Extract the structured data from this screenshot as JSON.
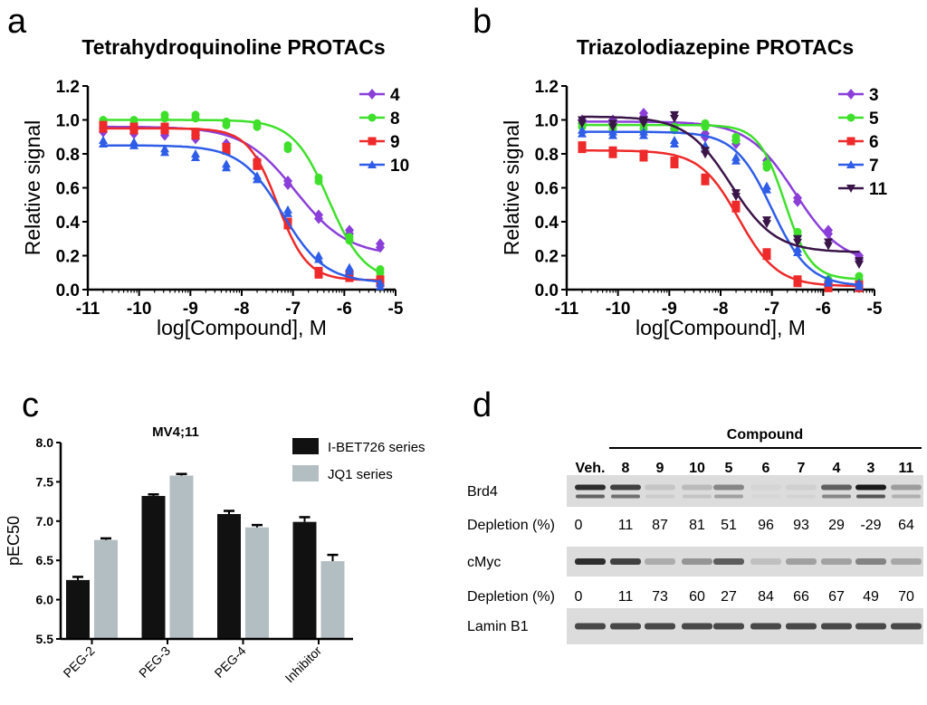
{
  "panel_letters": [
    "a",
    "b",
    "c",
    "d"
  ],
  "chart_data": [
    {
      "type": "line",
      "title": "Tetrahydroquinoline PROTACs",
      "xlabel": "log[Compound], M",
      "ylabel": "Relative signal",
      "xlim": [
        -11,
        -5
      ],
      "ylim": [
        0,
        1.2
      ],
      "xticks": [
        "-11",
        "-10",
        "-9",
        "-8",
        "-7",
        "-6",
        "-5"
      ],
      "yticks": [
        "0.0",
        "0.2",
        "0.4",
        "0.6",
        "0.8",
        "1.0",
        "1.2"
      ],
      "legend": "top-right",
      "x": [
        -10.7,
        -10.1,
        -9.5,
        -8.9,
        -8.3,
        -7.7,
        -7.1,
        -6.5,
        -5.9,
        -5.3
      ],
      "series": [
        {
          "name": "4",
          "color": "#8B3FD9",
          "marker": "diamond",
          "values": [
            0.95,
            0.94,
            0.93,
            0.91,
            0.86,
            0.76,
            0.64,
            0.44,
            0.35,
            0.27
          ],
          "fit": {
            "top": 0.96,
            "bottom": 0.2,
            "logec50": -6.95,
            "hill": 0.85
          }
        },
        {
          "name": "8",
          "color": "#3EE02B",
          "marker": "circle",
          "values": [
            1.0,
            1.0,
            1.03,
            1.03,
            0.99,
            0.98,
            0.85,
            0.66,
            0.31,
            0.12
          ],
          "fit": {
            "top": 1.0,
            "bottom": 0.05,
            "logec50": -6.3,
            "hill": 1.25
          }
        },
        {
          "name": "9",
          "color": "#EE2A2A",
          "marker": "square",
          "values": [
            0.97,
            0.96,
            0.96,
            0.93,
            0.84,
            0.75,
            0.4,
            0.11,
            0.09,
            0.06
          ],
          "fit": {
            "top": 0.95,
            "bottom": 0.055,
            "logec50": -7.3,
            "hill": 1.5
          }
        },
        {
          "name": "10",
          "color": "#2F5DE8",
          "marker": "triangle",
          "values": [
            0.88,
            0.87,
            0.83,
            0.8,
            0.74,
            0.67,
            0.47,
            0.2,
            0.13,
            0.04
          ],
          "fit": {
            "top": 0.85,
            "bottom": 0.04,
            "logec50": -7.2,
            "hill": 1.05
          }
        }
      ]
    },
    {
      "type": "line",
      "title": "Triazolodiazepine PROTACs",
      "xlabel": "log[Compound], M",
      "ylabel": "Relative signal",
      "xlim": [
        -11,
        -5
      ],
      "ylim": [
        0,
        1.2
      ],
      "xticks": [
        "-11",
        "-10",
        "-9",
        "-8",
        "-7",
        "-6",
        "-5"
      ],
      "yticks": [
        "0.0",
        "0.2",
        "0.4",
        "0.6",
        "0.8",
        "1.0",
        "1.2"
      ],
      "legend": "top-right",
      "x": [
        -10.7,
        -10.1,
        -9.5,
        -8.9,
        -8.3,
        -7.7,
        -7.1,
        -6.5,
        -5.9,
        -5.3
      ],
      "series": [
        {
          "name": "3",
          "color": "#8B3FD9",
          "marker": "diamond",
          "values": [
            1.0,
            1.0,
            1.04,
            0.97,
            0.92,
            0.88,
            0.76,
            0.54,
            0.35,
            0.2
          ],
          "fit": {
            "top": 0.99,
            "bottom": 0.15,
            "logec50": -6.55,
            "hill": 0.95
          }
        },
        {
          "name": "5",
          "color": "#3EE02B",
          "marker": "circle",
          "values": [
            0.98,
            0.97,
            0.97,
            0.96,
            0.98,
            0.9,
            0.74,
            0.34,
            0.06,
            0.08
          ],
          "fit": {
            "top": 0.97,
            "bottom": 0.06,
            "logec50": -6.75,
            "hill": 1.7
          }
        },
        {
          "name": "6",
          "color": "#EE2A2A",
          "marker": "square",
          "values": [
            0.85,
            0.82,
            0.8,
            0.76,
            0.66,
            0.5,
            0.22,
            0.06,
            0.03,
            0.03
          ],
          "fit": {
            "top": 0.82,
            "bottom": 0.02,
            "logec50": -7.65,
            "hill": 1.15
          }
        },
        {
          "name": "7",
          "color": "#2F5DE8",
          "marker": "triangle",
          "values": [
            0.94,
            0.93,
            0.93,
            0.88,
            0.85,
            0.78,
            0.61,
            0.24,
            0.06,
            0.04
          ],
          "fit": {
            "top": 0.93,
            "bottom": 0.02,
            "logec50": -7.0,
            "hill": 1.2
          }
        },
        {
          "name": "11",
          "color": "#3A1548",
          "marker": "triangle-down",
          "values": [
            1.0,
            0.98,
            1.0,
            1.03,
            0.82,
            0.57,
            0.41,
            0.3,
            0.28,
            0.17
          ],
          "fit": {
            "top": 1.02,
            "bottom": 0.22,
            "logec50": -7.8,
            "hill": 1.0
          }
        }
      ]
    },
    {
      "type": "bar",
      "title": "MV4;11",
      "ylabel": "pEC50",
      "ylim": [
        5.5,
        8.0
      ],
      "yticks": [
        "5.5",
        "6.0",
        "6.5",
        "7.0",
        "7.5",
        "8.0"
      ],
      "categories": [
        "PEG-2",
        "PEG-3",
        "PEG-4",
        "Inhibitor"
      ],
      "legend": "top-right",
      "series": [
        {
          "name": "I-BET726 series",
          "color": "#111111",
          "values": [
            6.25,
            7.32,
            7.09,
            6.99
          ],
          "errors": [
            0.04,
            0.02,
            0.04,
            0.06
          ]
        },
        {
          "name": "JQ1 series",
          "color": "#B3BEC2",
          "values": [
            6.76,
            7.58,
            6.92,
            6.49
          ],
          "errors": [
            0.02,
            0.02,
            0.03,
            0.08
          ]
        }
      ]
    }
  ],
  "western_blot": {
    "group_label": "Compound",
    "lanes": [
      "Veh.",
      "8",
      "9",
      "10",
      "5",
      "6",
      "7",
      "4",
      "3",
      "11"
    ],
    "rows": [
      {
        "protein": "Brd4",
        "depletion_label": "Depletion (%)",
        "depletion": [
          "0",
          "11",
          "87",
          "81",
          "51",
          "96",
          "93",
          "29",
          "-29",
          "64"
        ]
      },
      {
        "protein": "cMyc",
        "depletion_label": "Depletion (%)",
        "depletion": [
          "0",
          "11",
          "73",
          "60",
          "27",
          "84",
          "66",
          "67",
          "49",
          "70"
        ]
      },
      {
        "protein": "Lamin B1"
      }
    ]
  }
}
